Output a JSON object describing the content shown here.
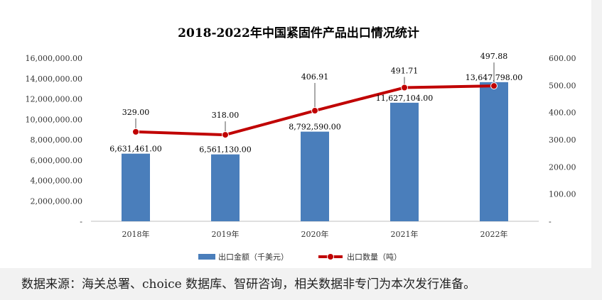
{
  "chart_data": {
    "type": "bar+line",
    "title": "2018-2022年中国紧固件产品出口情况统计",
    "categories": [
      "2018年",
      "2019年",
      "2020年",
      "2021年",
      "2022年"
    ],
    "series": [
      {
        "name": "出口金额（千美元）",
        "type": "bar",
        "axis": "left",
        "color": "#4a7ebb",
        "values": [
          6631461.0,
          6561130.0,
          8792590.0,
          11627104.0,
          13647798.0
        ],
        "labels": [
          "6,631,461.00",
          "6,561,130.00",
          "8,792,590.00",
          "11,627,104.00",
          "13,647,798.00"
        ]
      },
      {
        "name": "出口数量（吨）",
        "type": "line",
        "axis": "right",
        "color": "#c00000",
        "values": [
          329.0,
          318.0,
          406.91,
          491.71,
          497.88
        ],
        "labels": [
          "329.00",
          "318.00",
          "406.91",
          "491.71",
          "497.88"
        ]
      }
    ],
    "left_axis": {
      "ylim": [
        0,
        16000000
      ],
      "ticks": [
        0,
        2000000,
        4000000,
        6000000,
        8000000,
        10000000,
        12000000,
        14000000,
        16000000
      ],
      "tick_labels": [
        "-",
        "2,000,000.00",
        "4,000,000.00",
        "6,000,000.00",
        "8,000,000.00",
        "10,000,000.00",
        "12,000,000.00",
        "14,000,000.00",
        "16,000,000.00"
      ]
    },
    "right_axis": {
      "ylim": [
        0,
        600
      ],
      "ticks": [
        0,
        100,
        200,
        300,
        400,
        500,
        600
      ],
      "tick_labels": [
        "-",
        "100.00",
        "200.00",
        "300.00",
        "400.00",
        "500.00",
        "600.00"
      ]
    },
    "legend_position": "bottom",
    "grid": false
  },
  "source_note": "数据来源：海关总署、choice 数据库、智研咨询，相关数据非专门为本次发行准备。"
}
